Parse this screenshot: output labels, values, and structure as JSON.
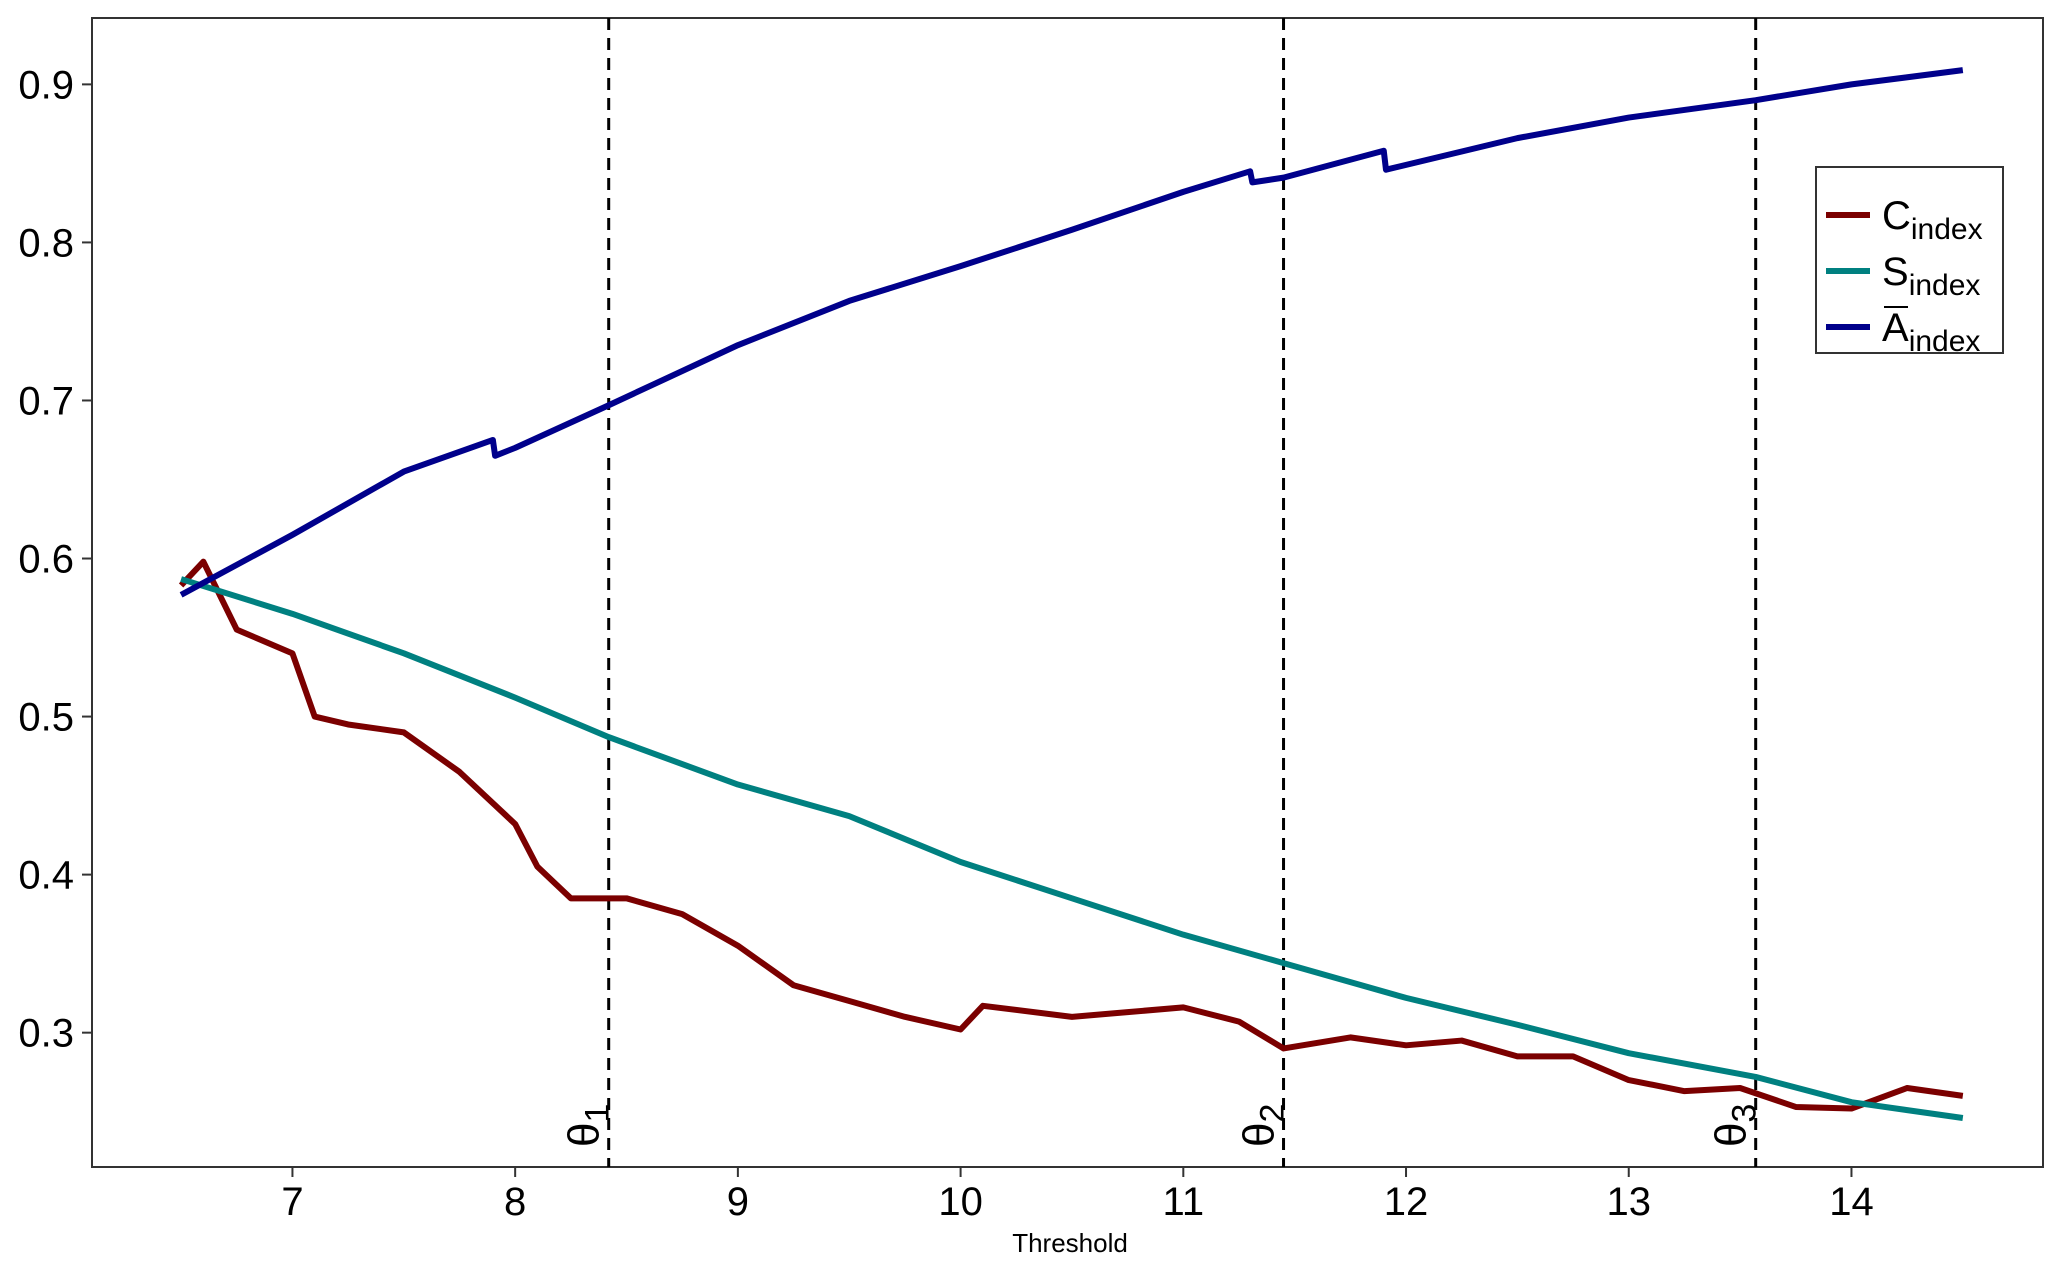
{
  "chart_data": {
    "type": "line",
    "x_label": "Threshold",
    "xlim": [
      6.1,
      14.86
    ],
    "ylim": [
      0.215,
      0.942
    ],
    "xticks": [
      7,
      8,
      9,
      10,
      11,
      12,
      13,
      14
    ],
    "yticks": [
      0.3,
      0.4,
      0.5,
      0.6,
      0.7,
      0.8,
      0.9
    ],
    "legend": "top-right",
    "series": [
      {
        "name": "C",
        "subscript": "index",
        "overline": false,
        "color": "#7b0000",
        "x": [
          6.5,
          6.6,
          6.75,
          7,
          7.1,
          7.25,
          7.5,
          7.75,
          8,
          8.1,
          8.25,
          8.5,
          8.75,
          9,
          9.25,
          9.5,
          9.75,
          10,
          10.1,
          10.5,
          10.75,
          11,
          11.25,
          11.45,
          11.75,
          12,
          12.25,
          12.5,
          12.75,
          13,
          13.25,
          13.5,
          13.75,
          14,
          14.25,
          14.5
        ],
        "values": [
          0.583,
          0.598,
          0.555,
          0.54,
          0.5,
          0.495,
          0.49,
          0.465,
          0.432,
          0.405,
          0.385,
          0.385,
          0.375,
          0.355,
          0.33,
          0.32,
          0.31,
          0.302,
          0.317,
          0.31,
          0.313,
          0.316,
          0.307,
          0.29,
          0.297,
          0.292,
          0.295,
          0.285,
          0.285,
          0.27,
          0.263,
          0.265,
          0.253,
          0.252,
          0.265,
          0.26
        ]
      },
      {
        "name": "S",
        "subscript": "index",
        "overline": false,
        "color": "#008080",
        "x": [
          6.5,
          7,
          7.5,
          8,
          8.42,
          9,
          9.5,
          10,
          10.5,
          11,
          11.45,
          12,
          12.5,
          13,
          13.57,
          14,
          14.5
        ],
        "values": [
          0.587,
          0.565,
          0.54,
          0.512,
          0.487,
          0.457,
          0.437,
          0.408,
          0.385,
          0.362,
          0.344,
          0.322,
          0.305,
          0.287,
          0.272,
          0.256,
          0.246
        ]
      },
      {
        "name": "A",
        "subscript": "index",
        "overline": true,
        "color": "#00008b",
        "x": [
          6.5,
          7,
          7.5,
          7.9,
          7.91,
          8,
          8.42,
          9,
          9.5,
          10,
          10.5,
          11,
          11.3,
          11.31,
          11.45,
          11.9,
          11.91,
          12.5,
          13,
          13.57,
          14,
          14.5
        ],
        "values": [
          0.577,
          0.615,
          0.655,
          0.675,
          0.665,
          0.67,
          0.697,
          0.735,
          0.763,
          0.785,
          0.808,
          0.832,
          0.845,
          0.838,
          0.841,
          0.858,
          0.846,
          0.866,
          0.879,
          0.89,
          0.9,
          0.909
        ]
      }
    ],
    "annotations": [
      {
        "x": 8.42,
        "label": "θ",
        "subscript": "1"
      },
      {
        "x": 11.45,
        "label": "θ",
        "subscript": "2"
      },
      {
        "x": 13.57,
        "label": "θ",
        "subscript": "3"
      }
    ]
  }
}
